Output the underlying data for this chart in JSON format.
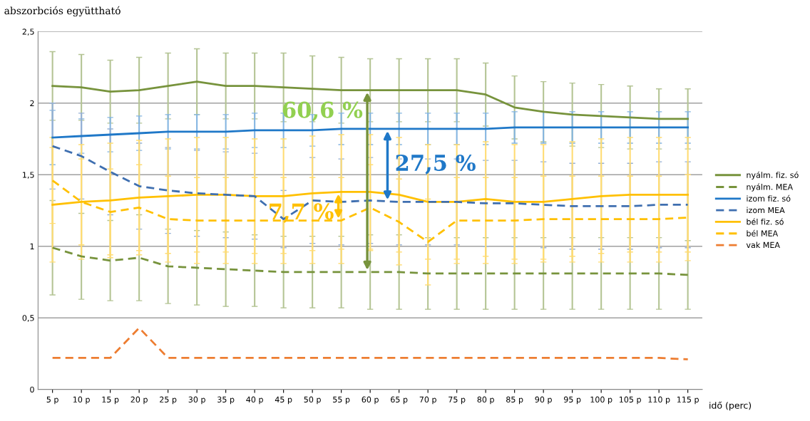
{
  "chart_data": {
    "type": "line",
    "ylabel": "abszorbciós együttható",
    "xlabel": "idő (perc)",
    "categories": [
      "5 p",
      "10 p",
      "15 p",
      "20 p",
      "25 p",
      "30 p",
      "35 p",
      "40 p",
      "45 p",
      "50 p",
      "55 p",
      "60 p",
      "65 p",
      "70 p",
      "75 p",
      "80 p",
      "85 p",
      "90 p",
      "95 p",
      "100 p",
      "105 p",
      "110 p",
      "115 p"
    ],
    "ylim": [
      0,
      2.5
    ],
    "yticks": [
      0,
      {
        "value": 0.5,
        "label": "0,5"
      },
      1,
      {
        "value": 1.5,
        "label": "1,5"
      },
      2,
      {
        "value": 2.5,
        "label": "2,5"
      }
    ],
    "grid": "y",
    "legend": "right",
    "marker": "none",
    "series": [
      {
        "name": "nyálm. fiz. só",
        "color": "#77933c",
        "line_style": "solid",
        "values": [
          2.12,
          2.11,
          2.08,
          2.09,
          2.12,
          2.15,
          2.12,
          2.12,
          2.11,
          2.1,
          2.09,
          2.09,
          2.09,
          2.09,
          2.09,
          2.06,
          1.97,
          1.94,
          1.92,
          1.91,
          1.9,
          1.89,
          1.89
        ],
        "errors": [
          0.24,
          0.23,
          0.22,
          0.23,
          0.23,
          0.23,
          0.23,
          0.23,
          0.24,
          0.23,
          0.23,
          0.22,
          0.22,
          0.22,
          0.22,
          0.22,
          0.22,
          0.21,
          0.22,
          0.22,
          0.22,
          0.21,
          0.21
        ]
      },
      {
        "name": "nyálm. MEA",
        "color": "#77933c",
        "line_style": "dashed",
        "values": [
          0.99,
          0.93,
          0.9,
          0.92,
          0.86,
          0.85,
          0.84,
          0.83,
          0.82,
          0.82,
          0.82,
          0.82,
          0.82,
          0.81,
          0.81,
          0.81,
          0.81,
          0.81,
          0.81,
          0.81,
          0.81,
          0.81,
          0.8
        ],
        "errors": [
          0.33,
          0.3,
          0.28,
          0.3,
          0.26,
          0.26,
          0.26,
          0.25,
          0.25,
          0.25,
          0.25,
          0.26,
          0.26,
          0.25,
          0.25,
          0.25,
          0.25,
          0.25,
          0.25,
          0.25,
          0.25,
          0.25,
          0.24
        ]
      },
      {
        "name": "izom fiz. só",
        "color": "#1f78c8",
        "line_style": "solid",
        "values": [
          1.76,
          1.77,
          1.78,
          1.79,
          1.8,
          1.8,
          1.8,
          1.81,
          1.81,
          1.81,
          1.82,
          1.82,
          1.82,
          1.82,
          1.82,
          1.82,
          1.83,
          1.83,
          1.83,
          1.83,
          1.83,
          1.83,
          1.83
        ],
        "errors": [
          0.19,
          0.12,
          0.12,
          0.12,
          0.12,
          0.12,
          0.12,
          0.12,
          0.12,
          0.11,
          0.11,
          0.11,
          0.11,
          0.11,
          0.11,
          0.11,
          0.11,
          0.11,
          0.11,
          0.11,
          0.11,
          0.11,
          0.11
        ]
      },
      {
        "name": "izom MEA",
        "color": "#3f6fb0",
        "line_style": "dashed",
        "values": [
          1.7,
          1.63,
          1.52,
          1.42,
          1.39,
          1.37,
          1.36,
          1.35,
          1.19,
          1.32,
          1.31,
          1.32,
          1.31,
          1.31,
          1.31,
          1.3,
          1.3,
          1.29,
          1.28,
          1.28,
          1.28,
          1.29,
          1.29
        ],
        "errors": [
          0.3,
          0.3,
          0.3,
          0.3,
          0.3,
          0.3,
          0.3,
          0.3,
          0.2,
          0.3,
          0.3,
          0.3,
          0.3,
          0.3,
          0.3,
          0.3,
          0.3,
          0.3,
          0.3,
          0.3,
          0.3,
          0.3,
          0.3
        ]
      },
      {
        "name": "bél fiz. só",
        "color": "#ffc000",
        "line_style": "solid",
        "values": [
          1.29,
          1.31,
          1.32,
          1.34,
          1.35,
          1.36,
          1.36,
          1.35,
          1.35,
          1.37,
          1.38,
          1.38,
          1.36,
          1.31,
          1.31,
          1.33,
          1.31,
          1.31,
          1.33,
          1.35,
          1.36,
          1.36,
          1.36
        ],
        "errors": [
          0.4,
          0.4,
          0.4,
          0.4,
          0.4,
          0.4,
          0.4,
          0.4,
          0.4,
          0.4,
          0.4,
          0.4,
          0.4,
          0.4,
          0.4,
          0.4,
          0.4,
          0.4,
          0.4,
          0.4,
          0.4,
          0.4,
          0.4
        ]
      },
      {
        "name": "bél MEA",
        "color": "#ffc000",
        "line_style": "dashed",
        "values": [
          1.46,
          1.31,
          1.24,
          1.27,
          1.19,
          1.18,
          1.18,
          1.18,
          1.18,
          1.18,
          1.18,
          1.27,
          1.17,
          1.03,
          1.18,
          1.18,
          1.18,
          1.19,
          1.19,
          1.19,
          1.19,
          1.19,
          1.2
        ],
        "errors": [
          0.3,
          0.3,
          0.3,
          0.3,
          0.3,
          0.3,
          0.3,
          0.3,
          0.3,
          0.3,
          0.3,
          0.3,
          0.3,
          0.3,
          0.3,
          0.3,
          0.3,
          0.3,
          0.3,
          0.3,
          0.3,
          0.3,
          0.3
        ]
      },
      {
        "name": "vak MEA",
        "color": "#ed7d31",
        "line_style": "dashed",
        "values": [
          0.22,
          0.22,
          0.22,
          0.43,
          0.22,
          0.22,
          0.22,
          0.22,
          0.22,
          0.22,
          0.22,
          0.22,
          0.22,
          0.22,
          0.22,
          0.22,
          0.22,
          0.22,
          0.22,
          0.22,
          0.22,
          0.22,
          0.21
        ]
      }
    ],
    "annotations": [
      {
        "text": "60,6 %",
        "x": "60 p",
        "y": 2.09
      },
      {
        "text": "27,5 %",
        "x": "65 p",
        "y": 1.82
      },
      {
        "text": "7,7 %",
        "x": "55 p",
        "y": 1.38
      }
    ]
  }
}
